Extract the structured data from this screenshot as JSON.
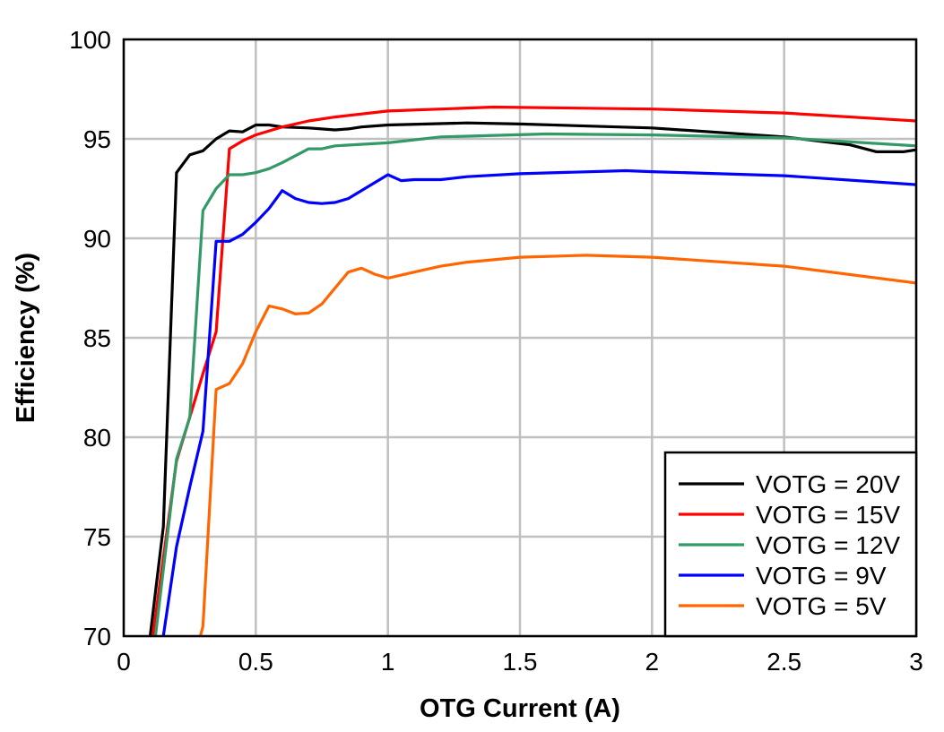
{
  "chart_data": {
    "type": "line",
    "xlabel": "OTG Current (A)",
    "ylabel": "Efficiency (%)",
    "xlim": [
      0,
      3
    ],
    "ylim": [
      70,
      100
    ],
    "xticks": [
      0,
      0.5,
      1,
      1.5,
      2,
      2.5,
      3
    ],
    "xtick_labels": [
      "0",
      "0.5",
      "1",
      "1.5",
      "2",
      "2.5",
      "3"
    ],
    "yticks": [
      70,
      75,
      80,
      85,
      90,
      95,
      100
    ],
    "ytick_labels": [
      "70",
      "75",
      "80",
      "85",
      "90",
      "95",
      "100"
    ],
    "grid": true,
    "legend_position": "bottom-right",
    "series": [
      {
        "name": "VOTG = 20V",
        "color": "#000000",
        "points": [
          [
            0.1,
            70
          ],
          [
            0.15,
            75.5
          ],
          [
            0.2,
            93.3
          ],
          [
            0.25,
            94.2
          ],
          [
            0.3,
            94.4
          ],
          [
            0.35,
            95.0
          ],
          [
            0.4,
            95.4
          ],
          [
            0.45,
            95.35
          ],
          [
            0.5,
            95.7
          ],
          [
            0.55,
            95.7
          ],
          [
            0.6,
            95.6
          ],
          [
            0.7,
            95.55
          ],
          [
            0.8,
            95.45
          ],
          [
            0.85,
            95.5
          ],
          [
            0.9,
            95.6
          ],
          [
            1.0,
            95.7
          ],
          [
            1.3,
            95.8
          ],
          [
            1.5,
            95.75
          ],
          [
            2.0,
            95.55
          ],
          [
            2.5,
            95.1
          ],
          [
            2.75,
            94.7
          ],
          [
            2.85,
            94.35
          ],
          [
            2.95,
            94.35
          ],
          [
            3.0,
            94.45
          ]
        ]
      },
      {
        "name": "VOTG = 15V",
        "color": "#ff0000",
        "points": [
          [
            0.11,
            70
          ],
          [
            0.2,
            78.8
          ],
          [
            0.3,
            83.2
          ],
          [
            0.35,
            85.3
          ],
          [
            0.4,
            94.5
          ],
          [
            0.45,
            94.9
          ],
          [
            0.5,
            95.2
          ],
          [
            0.6,
            95.6
          ],
          [
            0.7,
            95.9
          ],
          [
            0.8,
            96.1
          ],
          [
            1.0,
            96.4
          ],
          [
            1.4,
            96.6
          ],
          [
            2.0,
            96.5
          ],
          [
            2.5,
            96.3
          ],
          [
            3.0,
            95.9
          ]
        ]
      },
      {
        "name": "VOTG = 12V",
        "color": "#339966",
        "points": [
          [
            0.12,
            70
          ],
          [
            0.2,
            78.9
          ],
          [
            0.25,
            81.0
          ],
          [
            0.3,
            91.4
          ],
          [
            0.35,
            92.5
          ],
          [
            0.4,
            93.2
          ],
          [
            0.45,
            93.2
          ],
          [
            0.5,
            93.3
          ],
          [
            0.55,
            93.5
          ],
          [
            0.6,
            93.8
          ],
          [
            0.7,
            94.5
          ],
          [
            0.75,
            94.5
          ],
          [
            0.8,
            94.65
          ],
          [
            1.0,
            94.8
          ],
          [
            1.2,
            95.1
          ],
          [
            1.6,
            95.25
          ],
          [
            2.0,
            95.2
          ],
          [
            2.5,
            95.05
          ],
          [
            3.0,
            94.65
          ]
        ]
      },
      {
        "name": "VOTG = 9V",
        "color": "#0000ff",
        "points": [
          [
            0.15,
            70
          ],
          [
            0.2,
            74.5
          ],
          [
            0.25,
            77.5
          ],
          [
            0.3,
            80.3
          ],
          [
            0.35,
            89.85
          ],
          [
            0.4,
            89.85
          ],
          [
            0.45,
            90.2
          ],
          [
            0.5,
            90.8
          ],
          [
            0.55,
            91.5
          ],
          [
            0.6,
            92.4
          ],
          [
            0.65,
            92.0
          ],
          [
            0.7,
            91.8
          ],
          [
            0.75,
            91.75
          ],
          [
            0.8,
            91.8
          ],
          [
            0.85,
            92.0
          ],
          [
            0.9,
            92.4
          ],
          [
            1.0,
            93.2
          ],
          [
            1.05,
            92.9
          ],
          [
            1.1,
            92.95
          ],
          [
            1.2,
            92.95
          ],
          [
            1.3,
            93.1
          ],
          [
            1.5,
            93.25
          ],
          [
            1.9,
            93.4
          ],
          [
            2.0,
            93.35
          ],
          [
            2.5,
            93.15
          ],
          [
            3.0,
            92.7
          ]
        ]
      },
      {
        "name": "VOTG = 5V",
        "color": "#ff6600",
        "points": [
          [
            0.29,
            70
          ],
          [
            0.3,
            70.5
          ],
          [
            0.35,
            82.4
          ],
          [
            0.4,
            82.7
          ],
          [
            0.45,
            83.7
          ],
          [
            0.5,
            85.3
          ],
          [
            0.55,
            86.6
          ],
          [
            0.6,
            86.45
          ],
          [
            0.65,
            86.2
          ],
          [
            0.7,
            86.25
          ],
          [
            0.75,
            86.7
          ],
          [
            0.85,
            88.3
          ],
          [
            0.9,
            88.5
          ],
          [
            0.95,
            88.2
          ],
          [
            1.0,
            88.0
          ],
          [
            1.1,
            88.3
          ],
          [
            1.2,
            88.6
          ],
          [
            1.3,
            88.8
          ],
          [
            1.5,
            89.05
          ],
          [
            1.75,
            89.15
          ],
          [
            2.0,
            89.05
          ],
          [
            2.5,
            88.6
          ],
          [
            3.0,
            87.75
          ]
        ]
      }
    ]
  }
}
